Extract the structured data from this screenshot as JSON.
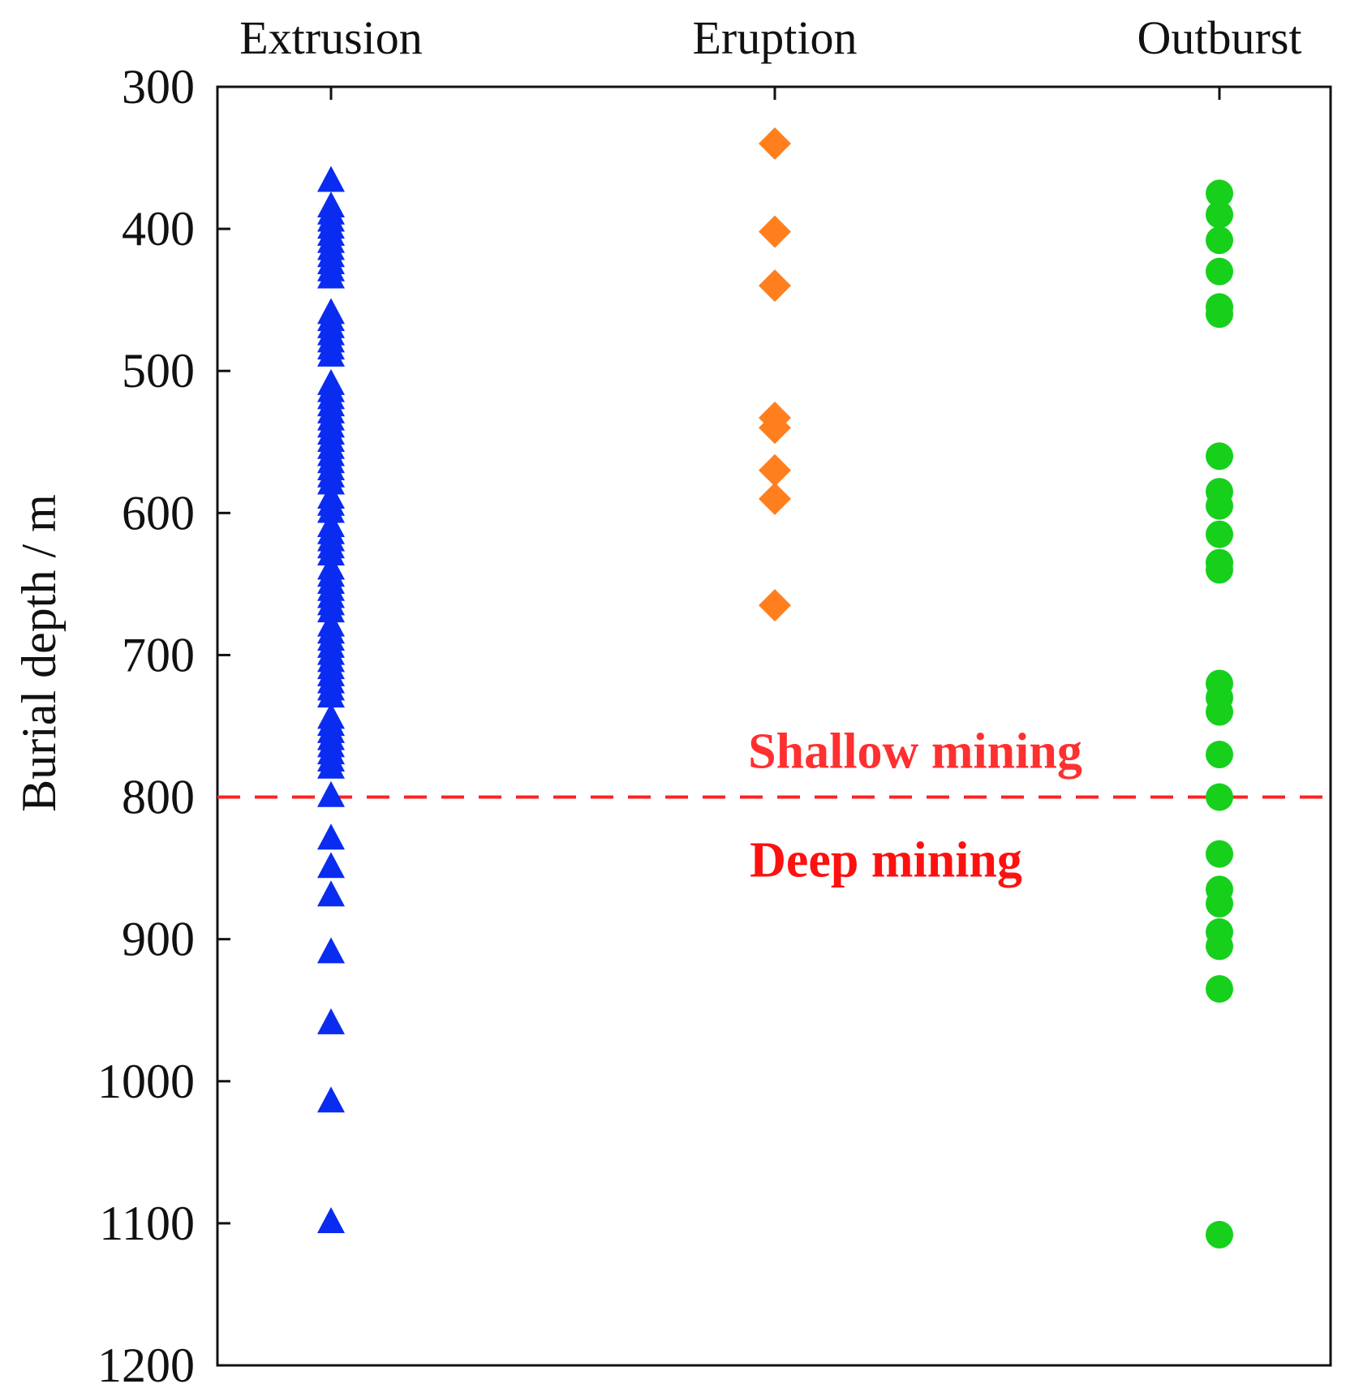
{
  "chart_data": {
    "type": "scatter",
    "categories": [
      "Extrusion",
      "Eruption",
      "Outburst"
    ],
    "ylabel": "Burial depth / m",
    "ylim": [
      300,
      1200
    ],
    "y_inverted": true,
    "yticks": [
      300,
      400,
      500,
      600,
      700,
      800,
      900,
      1000,
      1100,
      1200
    ],
    "grid": false,
    "legend": "none",
    "series": [
      {
        "category": "Extrusion",
        "marker": "triangle",
        "color": "#0a2cf0",
        "values": [
          367,
          385,
          390,
          395,
          400,
          405,
          410,
          415,
          420,
          425,
          430,
          435,
          460,
          465,
          470,
          475,
          480,
          485,
          490,
          510,
          515,
          520,
          525,
          530,
          535,
          540,
          545,
          550,
          555,
          560,
          565,
          570,
          575,
          580,
          590,
          595,
          600,
          610,
          615,
          620,
          625,
          630,
          640,
          645,
          650,
          655,
          660,
          665,
          670,
          680,
          685,
          690,
          695,
          700,
          705,
          710,
          715,
          720,
          725,
          730,
          745,
          750,
          755,
          760,
          765,
          770,
          775,
          780,
          800,
          830,
          850,
          870,
          910,
          960,
          1015,
          1100
        ]
      },
      {
        "category": "Eruption",
        "marker": "diamond",
        "color": "#ff7f1e",
        "values": [
          340,
          402,
          440,
          533,
          540,
          570,
          590,
          665
        ]
      },
      {
        "category": "Outburst",
        "marker": "circle",
        "color": "#16d01c",
        "values": [
          375,
          390,
          408,
          430,
          455,
          460,
          560,
          585,
          595,
          615,
          635,
          640,
          720,
          730,
          740,
          770,
          800,
          840,
          865,
          875,
          895,
          905,
          935,
          1108
        ]
      }
    ],
    "reference_line": {
      "y": 800,
      "color": "#ff2222",
      "style": "dashed"
    },
    "annotations": [
      {
        "text": "Shallow mining",
        "color": "#ff3030"
      },
      {
        "text": "Deep mining",
        "color": "#ff1010"
      }
    ]
  }
}
